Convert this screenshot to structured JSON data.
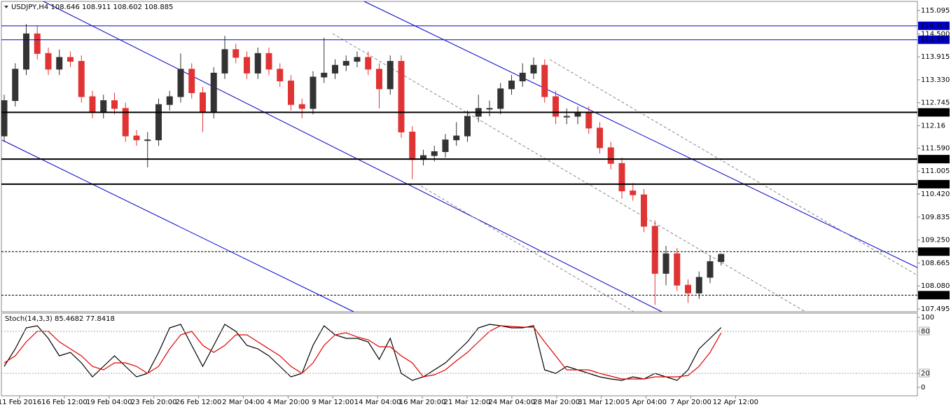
{
  "chart_data": [
    {
      "type": "candlestick",
      "title": "USDJPY,H4  108.646 108.911 108.602 108.885",
      "up_color": "#333333",
      "down_color": "#e03434",
      "open": [
        111.9,
        112.8,
        113.6,
        114.5,
        114.0,
        113.6,
        113.9,
        113.8,
        112.9,
        112.5,
        112.8,
        112.6,
        111.9,
        111.8,
        111.8,
        112.7,
        112.9,
        113.6,
        113.0,
        112.5,
        113.5,
        114.1,
        113.9,
        113.5,
        114.0,
        113.6,
        113.3,
        112.7,
        112.6,
        113.4,
        113.5,
        113.7,
        113.8,
        113.9,
        113.6,
        113.1,
        113.8,
        112.0,
        111.3,
        111.4,
        111.5,
        111.8,
        111.9,
        112.4,
        112.6,
        112.6,
        113.1,
        113.3,
        113.5,
        113.7,
        112.9,
        112.4,
        112.4,
        112.5,
        112.1,
        111.6,
        111.2,
        110.5,
        110.4,
        109.6,
        108.4,
        108.9,
        108.1,
        107.9,
        108.3,
        108.7
      ],
      "high": [
        112.95,
        113.75,
        114.75,
        114.7,
        114.15,
        114.1,
        114.05,
        113.95,
        113.05,
        112.95,
        113.0,
        112.75,
        112.05,
        112.0,
        112.85,
        113.05,
        114.0,
        113.75,
        113.15,
        113.65,
        114.45,
        114.25,
        114.05,
        114.15,
        114.15,
        113.75,
        113.45,
        112.85,
        113.55,
        114.4,
        113.85,
        113.95,
        114.05,
        114.05,
        113.75,
        113.95,
        113.95,
        112.15,
        111.55,
        111.65,
        111.95,
        112.25,
        112.55,
        112.95,
        112.8,
        113.25,
        113.45,
        113.75,
        113.9,
        113.85,
        113.05,
        112.6,
        112.65,
        112.65,
        112.25,
        111.75,
        111.35,
        110.7,
        110.55,
        109.75,
        109.1,
        109.05,
        108.25,
        108.45,
        108.85,
        108.911
      ],
      "low": [
        111.75,
        112.65,
        113.45,
        113.85,
        113.45,
        113.45,
        113.65,
        112.75,
        112.35,
        112.35,
        112.45,
        111.75,
        111.65,
        111.1,
        111.65,
        112.55,
        112.75,
        112.85,
        112.0,
        112.35,
        113.35,
        113.75,
        113.35,
        113.35,
        113.45,
        113.15,
        112.55,
        112.35,
        112.45,
        113.25,
        113.35,
        113.55,
        113.65,
        113.45,
        112.6,
        112.95,
        111.85,
        110.8,
        111.15,
        111.25,
        111.35,
        111.65,
        111.75,
        112.25,
        112.4,
        112.45,
        112.95,
        113.15,
        113.35,
        112.75,
        112.2,
        112.2,
        112.2,
        111.95,
        111.45,
        111.05,
        110.3,
        110.25,
        109.45,
        107.6,
        108.1,
        107.95,
        107.65,
        107.75,
        108.15,
        108.602
      ],
      "close": [
        112.8,
        113.6,
        114.5,
        114.0,
        113.6,
        113.9,
        113.8,
        112.9,
        112.5,
        112.8,
        112.6,
        111.9,
        111.8,
        111.8,
        112.7,
        112.9,
        113.6,
        113.0,
        112.5,
        113.5,
        114.1,
        113.9,
        113.5,
        114.0,
        113.6,
        113.3,
        112.7,
        112.6,
        113.4,
        113.5,
        113.7,
        113.8,
        113.9,
        113.6,
        113.1,
        113.8,
        112.0,
        111.3,
        111.4,
        111.5,
        111.8,
        111.9,
        112.4,
        112.6,
        112.6,
        113.1,
        113.3,
        113.5,
        113.7,
        112.9,
        112.4,
        112.4,
        112.5,
        112.1,
        111.6,
        111.2,
        110.5,
        110.4,
        109.6,
        108.4,
        108.9,
        108.1,
        107.9,
        108.3,
        108.7,
        108.885
      ],
      "ylim": [
        107.424,
        115.326
      ],
      "yticks": [
        115.095,
        {
          "value": 114.5,
          "label": "114.500"
        },
        113.915,
        {
          "value": 113.33,
          "label": "113.330"
        },
        112.745,
        112.16,
        {
          "value": 111.59,
          "label": "111.590"
        },
        111.005,
        {
          "value": 110.42,
          "label": "110.420"
        },
        109.835,
        {
          "value": 109.25,
          "label": "109.250"
        },
        108.665,
        {
          "value": 108.08,
          "label": "108.080"
        },
        107.495
      ],
      "levels": [
        {
          "value": 114.705,
          "color": "#0000cc",
          "dashed": false
        },
        {
          "value": 114.35,
          "label": "114.350",
          "color": "#0000cc",
          "dashed": false
        },
        {
          "value": 112.5,
          "label": "112.500",
          "color": "#000000",
          "dashed": false
        },
        {
          "value": 111.31,
          "label": "111.310",
          "color": "#000000",
          "dashed": false
        },
        {
          "value": 110.672,
          "color": "#000000",
          "dashed": false
        },
        {
          "value": 108.954,
          "color": "#000000",
          "dashed": true
        },
        {
          "value": 107.846,
          "color": "#000000",
          "dashed": true
        }
      ],
      "grid": false
    },
    {
      "type": "line",
      "title": "Stoch(14,3,3) 85.4682 77.8418",
      "series": [
        {
          "color": "#000000",
          "values": [
            30,
            55,
            85,
            88,
            70,
            45,
            50,
            35,
            15,
            30,
            45,
            30,
            15,
            20,
            50,
            85,
            90,
            60,
            30,
            60,
            90,
            80,
            60,
            55,
            45,
            30,
            15,
            20,
            60,
            88,
            75,
            70,
            70,
            65,
            40,
            70,
            20,
            10,
            15,
            25,
            35,
            50,
            65,
            85,
            90,
            88,
            85,
            85,
            88,
            25,
            20,
            30,
            25,
            20,
            15,
            12,
            10,
            15,
            12,
            20,
            15,
            10,
            25,
            55,
            70,
            85.4682
          ]
        },
        {
          "color": "#e00000",
          "values": [
            35,
            45,
            65,
            80,
            80,
            65,
            55,
            45,
            30,
            25,
            35,
            35,
            30,
            20,
            30,
            55,
            75,
            80,
            60,
            50,
            60,
            75,
            75,
            65,
            55,
            45,
            30,
            20,
            35,
            60,
            75,
            78,
            72,
            68,
            58,
            58,
            45,
            35,
            15,
            18,
            25,
            38,
            50,
            65,
            80,
            88,
            87,
            86,
            86,
            65,
            45,
            25,
            25,
            25,
            20,
            16,
            12,
            12,
            12,
            15,
            15,
            15,
            17,
            30,
            50,
            77.8418
          ]
        }
      ],
      "ylim": [
        -12,
        106
      ],
      "yticks": [
        100,
        80,
        20,
        0
      ],
      "levels": [
        80,
        20
      ],
      "x_labels": [
        "11 Feb 2016",
        "16 Feb 12:00",
        "19 Feb 04:00",
        "23 Feb 20:00",
        "26 Feb 12:00",
        "2 Mar 04:00",
        "4 Mar 20:00",
        "9 Mar 12:00",
        "14 Mar 04:00",
        "16 Mar 20:00",
        "21 Mar 12:00",
        "24 Mar 04:00",
        "28 Mar 20:00",
        "31 Mar 12:00",
        "5 Apr 04:00",
        "7 Apr 20:00",
        "12 Apr 12:00"
      ],
      "grid": false
    }
  ]
}
